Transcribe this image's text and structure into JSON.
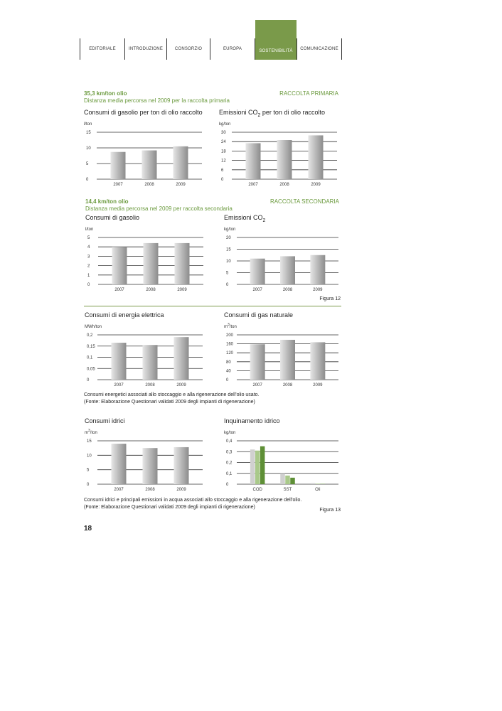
{
  "nav": {
    "items": [
      "EDITORIALE",
      "INTRODUZIONE",
      "CONSORZIO",
      "EUROPA",
      "SOSTENIBILITÀ",
      "COMUNICAZIONE"
    ],
    "active_index": 4,
    "active_color": "#7a9a4a"
  },
  "sections": {
    "primary": {
      "headline": "35,3 km/ton olio",
      "subline": "Distanza media percorsa nel 2009 per la raccolta primaria",
      "label": "RACCOLTA PRIMARIA"
    },
    "secondary": {
      "headline": "14,4 km/ton olio",
      "subline": "Distanza media percorsa nel 2009 per raccolta secondaria",
      "label": "RACCOLTA SECONDARIA"
    }
  },
  "captions": {
    "figura12": "Figura 12",
    "energy_note_1": "Consumi energetici associati allo stoccaggio e alla rigenerazione dell'olio usato.",
    "energy_note_2": "(Fonte: Elaborazione Questionari validati 2009 degli impianti di rigenerazione)",
    "water_note_1": "Consumi idrici e principali emissioni in acqua associati allo stoccaggio e alla rigenerazione dell'olio.",
    "water_note_2": "(Fonte: Elaborazione Questionari validati 2009 degli impianti di rigenerazione)",
    "figura13": "Figura 13"
  },
  "page_number": "18",
  "chart_data": [
    {
      "id": "c1",
      "type": "bar",
      "title": "Consumi di gasolio per ton di olio raccolto",
      "unit": "l/ton",
      "categories": [
        "2007",
        "2008",
        "2009"
      ],
      "values": [
        8.7,
        9.2,
        10.5
      ],
      "ylim": [
        0,
        15
      ],
      "yticks": [
        "0",
        "5",
        "10",
        "15"
      ],
      "ytick_values": [
        0,
        5,
        10,
        15
      ]
    },
    {
      "id": "c2",
      "type": "bar",
      "title": "Emissioni CO",
      "title_sub": "2",
      "title_suffix": " per ton di olio raccolto",
      "unit": "kg/ton",
      "categories": [
        "2007",
        "2008",
        "2009"
      ],
      "values": [
        23,
        25,
        28
      ],
      "ylim": [
        0,
        30
      ],
      "yticks": [
        "0",
        "6",
        "12",
        "18",
        "24",
        "30"
      ],
      "ytick_values": [
        0,
        6,
        12,
        18,
        24,
        30
      ]
    },
    {
      "id": "c3",
      "type": "bar",
      "title": "Consumi di gasolio",
      "unit": "l/ton",
      "categories": [
        "2007",
        "2008",
        "2009"
      ],
      "values": [
        4.0,
        4.4,
        4.4
      ],
      "ylim": [
        0,
        5
      ],
      "yticks": [
        "0",
        "1",
        "2",
        "3",
        "4",
        "5"
      ],
      "ytick_values": [
        0,
        1,
        2,
        3,
        4,
        5
      ]
    },
    {
      "id": "c4",
      "type": "bar",
      "title": "Emissioni CO",
      "title_sub": "2",
      "unit": "kg/ton",
      "categories": [
        "2007",
        "2008",
        "2009"
      ],
      "values": [
        11,
        12,
        12.5
      ],
      "ylim": [
        0,
        20
      ],
      "yticks": [
        "0",
        "5",
        "10",
        "15",
        "20"
      ],
      "ytick_values": [
        0,
        5,
        10,
        15,
        20
      ]
    },
    {
      "id": "c5",
      "type": "bar",
      "title": "Consumi di energia elettrica",
      "unit": "MWh/ton",
      "categories": [
        "2007",
        "2008",
        "2009"
      ],
      "values": [
        0.165,
        0.155,
        0.19
      ],
      "ylim": [
        0,
        0.2
      ],
      "yticks": [
        "0",
        "0,05",
        "0,1",
        "0,15",
        "0,2"
      ],
      "ytick_values": [
        0,
        0.05,
        0.1,
        0.15,
        0.2
      ]
    },
    {
      "id": "c6",
      "type": "bar",
      "title": "Consumi di gas naturale",
      "unit": "m",
      "unit_sup": "3",
      "unit_suffix": "/ton",
      "categories": [
        "2007",
        "2008",
        "2009"
      ],
      "values": [
        158,
        178,
        167
      ],
      "ylim": [
        0,
        200
      ],
      "yticks": [
        "0",
        "40",
        "80",
        "120",
        "160",
        "200"
      ],
      "ytick_values": [
        0,
        40,
        80,
        120,
        160,
        200
      ]
    },
    {
      "id": "c7",
      "type": "bar",
      "title": "Consumi idrici",
      "unit": "m",
      "unit_sup": "3",
      "unit_suffix": "/ton",
      "categories": [
        "2007",
        "2008",
        "2009"
      ],
      "values": [
        14,
        12.5,
        12.8
      ],
      "ylim": [
        0,
        15
      ],
      "yticks": [
        "0",
        "5",
        "10",
        "15"
      ],
      "ytick_values": [
        0,
        5,
        10,
        15
      ]
    },
    {
      "id": "c8",
      "type": "bar",
      "title": "Inquinamento idrico",
      "unit": "kg/ton",
      "categories": [
        "COD",
        "SST",
        "Oli"
      ],
      "series": [
        {
          "values": [
            0.32,
            0.1,
            0.01
          ],
          "color": "#d0d0d0"
        },
        {
          "values": [
            0.31,
            0.08,
            0.005
          ],
          "color": "#a9c98a"
        },
        {
          "values": [
            0.35,
            0.06,
            0.003
          ],
          "color": "#5e8f36"
        }
      ],
      "ylim": [
        0,
        0.4
      ],
      "yticks": [
        "0",
        "0,1",
        "0,2",
        "0,3",
        "0,4"
      ],
      "ytick_values": [
        0,
        0.1,
        0.2,
        0.3,
        0.4
      ]
    }
  ]
}
